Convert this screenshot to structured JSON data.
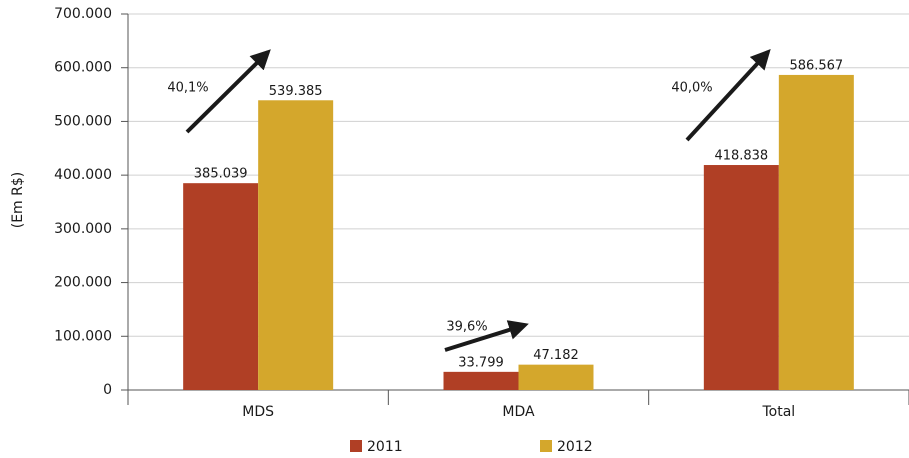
{
  "chart_data": {
    "type": "bar",
    "y_label": "(Em R$)",
    "categories": [
      "MDS",
      "MDA",
      "Total"
    ],
    "series": [
      {
        "name": "2011",
        "color": "#b03f25",
        "values": [
          385039,
          33799,
          418838
        ],
        "value_labels": [
          "385.039",
          "33.799",
          "418.838"
        ]
      },
      {
        "name": "2012",
        "color": "#d4a72c",
        "values": [
          539385,
          47182,
          586567
        ],
        "value_labels": [
          "539.385",
          "47.182",
          "586.567"
        ]
      }
    ],
    "annotations": [
      "40,1%",
      "39,6%",
      "40,0%"
    ],
    "ylim": [
      0,
      700000
    ],
    "yticks": [
      0,
      {
        "value": 100000,
        "label": "100.000"
      },
      {
        "value": 200000,
        "label": "200.000"
      },
      {
        "value": 300000,
        "label": "300.000"
      },
      {
        "value": 400000,
        "label": "400.000"
      },
      {
        "value": 500000,
        "label": "500.000"
      },
      {
        "value": 600000,
        "label": "600.000"
      },
      {
        "value": 700000,
        "label": "700.000"
      }
    ],
    "grid": true,
    "legend": "bottom"
  }
}
